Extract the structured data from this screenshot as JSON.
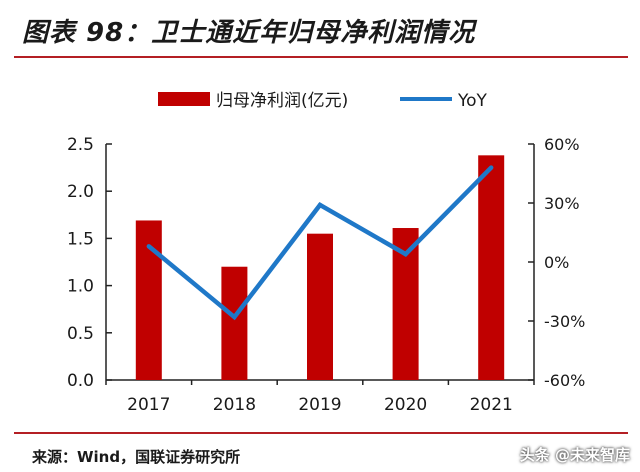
{
  "header": {
    "title": "图表 98：卫士通近年归母净利润情况"
  },
  "footer": {
    "source": "来源：Wind，国联证券研究所",
    "watermark": "头条 @未来智库"
  },
  "colors": {
    "bar": "#c00000",
    "line": "#1f78c8",
    "rule": "#b41f24"
  },
  "chart_data": {
    "type": "bar",
    "categories": [
      "2017",
      "2018",
      "2019",
      "2020",
      "2021"
    ],
    "series": [
      {
        "name": "归母净利润(亿元)",
        "type": "bar",
        "axis": "left",
        "values": [
          1.69,
          1.2,
          1.55,
          1.61,
          2.38
        ]
      },
      {
        "name": "YoY",
        "type": "line",
        "axis": "right",
        "values": [
          8,
          -28,
          29,
          4,
          48
        ]
      }
    ],
    "y_left": {
      "range": [
        0,
        2.5
      ],
      "ticks": [
        "0.0",
        "0.5",
        "1.0",
        "1.5",
        "2.0",
        "2.5"
      ]
    },
    "y_right": {
      "range": [
        -60,
        60
      ],
      "ticks": [
        "-60%",
        "-30%",
        "0%",
        "30%",
        "60%"
      ]
    },
    "legend": "top",
    "grid": false
  }
}
